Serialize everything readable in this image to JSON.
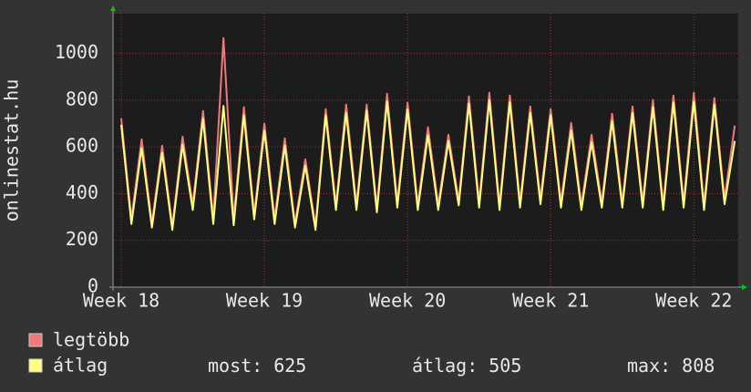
{
  "chart_data": {
    "type": "line",
    "y_label": "onlinestat.hu",
    "categories": [
      "Week 18",
      null,
      null,
      null,
      null,
      null,
      null,
      null,
      null,
      null,
      null,
      null,
      null,
      null,
      "Week 19",
      null,
      null,
      null,
      null,
      null,
      null,
      null,
      null,
      null,
      null,
      null,
      null,
      null,
      "Week 20",
      null,
      null,
      null,
      null,
      null,
      null,
      null,
      null,
      null,
      null,
      null,
      null,
      null,
      "Week 21",
      null,
      null,
      null,
      null,
      null,
      null,
      null,
      null,
      null,
      null,
      null,
      null,
      null,
      "Week 22",
      null,
      null,
      null,
      null
    ],
    "series": [
      {
        "name": "legtöbb",
        "color": "#f07878",
        "values": [
          722,
          293,
          633,
          273,
          605,
          262,
          644,
          352,
          754,
          293,
          1066,
          293,
          770,
          312,
          700,
          293,
          637,
          273,
          547,
          262,
          762,
          352,
          781,
          352,
          781,
          340,
          828,
          363,
          789,
          352,
          684,
          352,
          652,
          371,
          816,
          363,
          832,
          352,
          820,
          363,
          773,
          379,
          762,
          363,
          703,
          352,
          652,
          363,
          742,
          363,
          773,
          363,
          801,
          352,
          820,
          363,
          832,
          352,
          809,
          379,
          691
        ]
      },
      {
        "name": "átlag",
        "color": "#ffff80",
        "values": [
          695,
          270,
          595,
          255,
          575,
          245,
          610,
          330,
          720,
          270,
          775,
          265,
          735,
          290,
          670,
          270,
          605,
          255,
          520,
          245,
          735,
          330,
          745,
          330,
          755,
          320,
          795,
          340,
          760,
          330,
          650,
          330,
          625,
          350,
          785,
          340,
          800,
          330,
          790,
          340,
          745,
          355,
          735,
          340,
          670,
          330,
          620,
          340,
          710,
          340,
          745,
          340,
          770,
          330,
          790,
          340,
          795,
          330,
          780,
          355,
          625
        ]
      }
    ],
    "stats": [
      {
        "label": "most:",
        "value": 625
      },
      {
        "label": "átlag:",
        "value": 505
      },
      {
        "label": "max:",
        "value": 808
      }
    ],
    "ylim": [
      0,
      1170
    ],
    "yticks": [
      0,
      200,
      400,
      600,
      800,
      1000
    ],
    "grid": true
  }
}
